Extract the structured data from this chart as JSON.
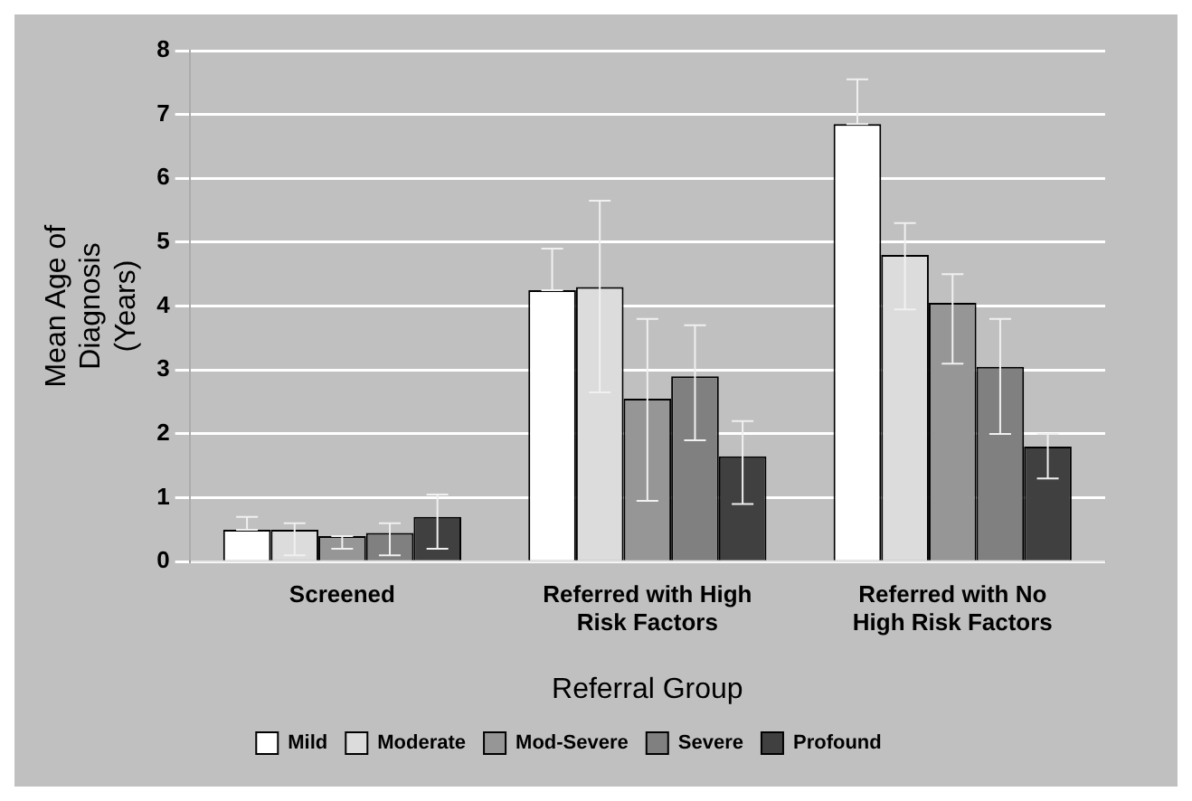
{
  "chart_data": {
    "type": "bar",
    "xlabel": "Referral Group",
    "ylabel": "Mean Age of Diagnosis (Years)",
    "categories": [
      "Screened",
      "Referred with High Risk Factors",
      "Referred with No High Risk Factors"
    ],
    "series": [
      {
        "name": "Mild",
        "color": "#ffffff",
        "values": [
          0.5,
          4.25,
          6.85
        ],
        "errors": [
          [
            0.5,
            0.7
          ],
          [
            4.25,
            4.9
          ],
          [
            6.85,
            7.55
          ]
        ]
      },
      {
        "name": "Moderate",
        "color": "#dcdcdc",
        "values": [
          0.5,
          4.3,
          4.8
        ],
        "errors": [
          [
            0.1,
            0.6
          ],
          [
            2.65,
            5.65
          ],
          [
            3.95,
            5.3
          ]
        ]
      },
      {
        "name": "Mod-Severe",
        "color": "#969696",
        "values": [
          0.4,
          2.55,
          4.05
        ],
        "errors": [
          [
            0.2,
            0.4
          ],
          [
            0.95,
            3.8
          ],
          [
            3.1,
            4.5
          ]
        ]
      },
      {
        "name": "Severe",
        "color": "#808080",
        "values": [
          0.45,
          2.9,
          3.05
        ],
        "errors": [
          [
            0.1,
            0.6
          ],
          [
            1.9,
            3.7
          ],
          [
            2.0,
            3.8
          ]
        ]
      },
      {
        "name": "Profound",
        "color": "#404040",
        "values": [
          0.7,
          1.65,
          1.8
        ],
        "errors": [
          [
            0.2,
            1.05
          ],
          [
            0.9,
            2.2
          ],
          [
            1.3,
            2.0
          ]
        ]
      }
    ],
    "ylim": [
      0,
      8
    ],
    "yticks": [
      0,
      1,
      2,
      3,
      4,
      5,
      6,
      7,
      8
    ],
    "grid": "y",
    "legend": "bottom"
  }
}
